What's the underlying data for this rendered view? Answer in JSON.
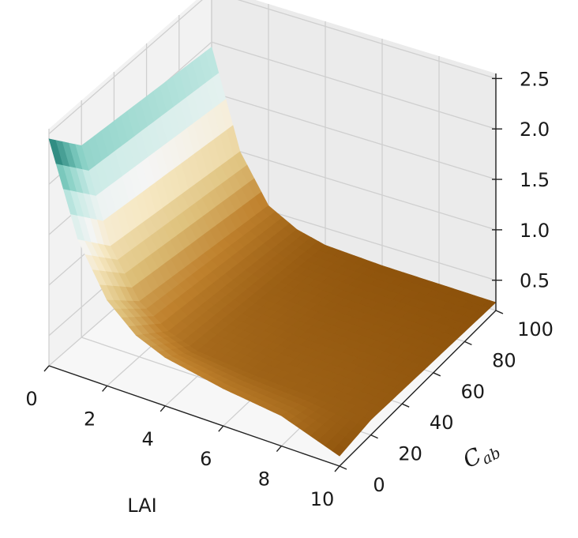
{
  "chart_data": {
    "type": "surface3d",
    "title": "",
    "xlabel": "LAI",
    "ylabel_main": "C",
    "ylabel_sub": "ab",
    "zlabel": "",
    "xlim": [
      0,
      10
    ],
    "ylim": [
      0,
      100
    ],
    "zlim": [
      0.2,
      2.55
    ],
    "x_ticks": [
      "0",
      "2",
      "4",
      "6",
      "8",
      "10"
    ],
    "y_ticks": [
      "0",
      "20",
      "40",
      "60",
      "80",
      "100"
    ],
    "z_ticks": [
      "0.5",
      "1.0",
      "1.5",
      "2.0",
      "2.5"
    ],
    "colormap": "BrBG",
    "grid": true,
    "surface": {
      "description_free_values": true,
      "lai_samples": [
        0,
        1,
        2,
        3,
        4,
        6,
        8,
        10
      ],
      "cab_samples": [
        0,
        20,
        40,
        60,
        80,
        100
      ],
      "z_at_cab_0": [
        2.45,
        1.55,
        1.05,
        0.8,
        0.68,
        0.57,
        0.5,
        0.3
      ],
      "z_at_cab_20": [
        2.1,
        1.2,
        0.75,
        0.55,
        0.45,
        0.4,
        0.38,
        0.35
      ],
      "z_at_cab_100": [
        1.95,
        1.0,
        0.55,
        0.4,
        0.33,
        0.3,
        0.29,
        0.28
      ]
    },
    "colors": {
      "dark_teal": "#01665e",
      "light_teal": "#80cdc1",
      "cream": "#f6e8c3",
      "tan": "#dfc27d",
      "brown": "#bf812d",
      "dark_brown": "#8c510a"
    }
  }
}
